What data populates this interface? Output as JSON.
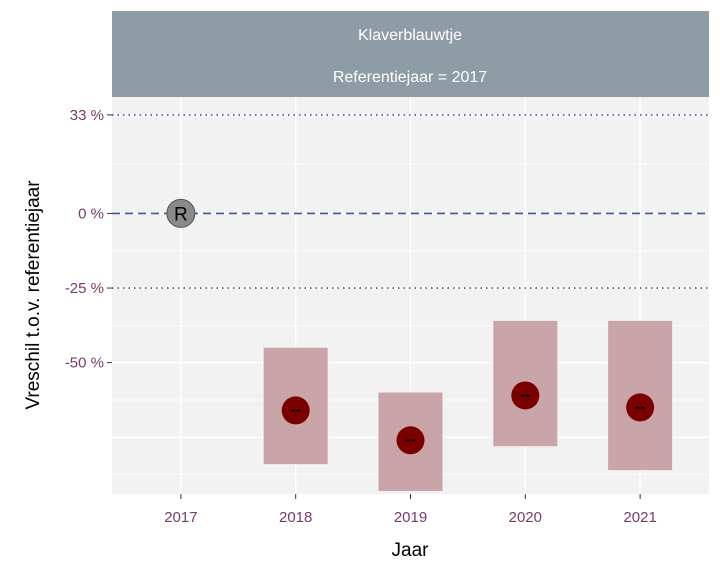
{
  "chart_data": {
    "type": "scatter",
    "facet": {
      "line1": "Klaverblauwtje",
      "line2": "Referentiejaar = 2017"
    },
    "xlabel": "Jaar",
    "ylabel": "Vreschil t.o.v. referentiejaar",
    "categories": [
      "2017",
      "2018",
      "2019",
      "2020",
      "2021"
    ],
    "ylim": [
      -94,
      39
    ],
    "y_ticks": [
      {
        "value": 33,
        "label": "33 %"
      },
      {
        "value": 0,
        "label": "0 %"
      },
      {
        "value": -25,
        "label": "-25 %"
      },
      {
        "value": -50,
        "label": "-50 %"
      }
    ],
    "reference": {
      "category": "2017",
      "value": 0,
      "label": "R"
    },
    "reference_lines": [
      {
        "value": 0,
        "style": "dashed"
      },
      {
        "value": 33,
        "style": "dotted"
      },
      {
        "value": -25,
        "style": "dotted"
      }
    ],
    "points": [
      {
        "category": "2018",
        "estimate": -66,
        "lower": -84,
        "upper": -45,
        "symbol": "--"
      },
      {
        "category": "2019",
        "estimate": -76,
        "lower": -93,
        "upper": -60,
        "symbol": "--"
      },
      {
        "category": "2020",
        "estimate": -61,
        "lower": -78,
        "upper": -36,
        "symbol": "--"
      },
      {
        "category": "2021",
        "estimate": -65,
        "lower": -86,
        "upper": -36,
        "symbol": "--"
      }
    ],
    "grid": true,
    "legend": "none",
    "colors": {
      "panel": "#f2f2f2",
      "grid": "#ffffff",
      "strip": "#8e9ca6",
      "interval": "#c9a4a8",
      "point": "#7a0000",
      "reference_point": "#8a8a8a",
      "reference_line": "#3a5a9a",
      "tick_label": "#7a3a6a"
    }
  }
}
